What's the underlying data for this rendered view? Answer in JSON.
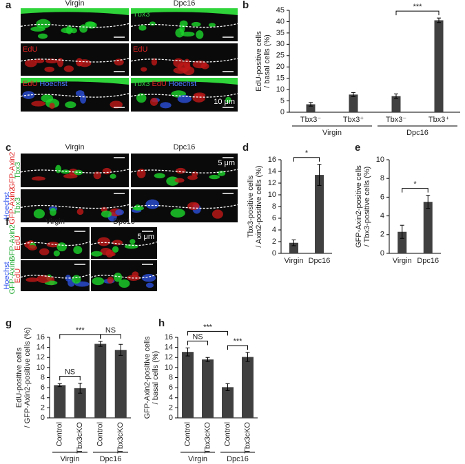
{
  "figure": [
    {
      "letter": "a",
      "columns": [
        "Virgin",
        "Dpc16"
      ],
      "cell_labels": [
        [
          [],
          [
            {
              "text": "Tbx3",
              "color": "#33cc44"
            }
          ]
        ],
        [
          [
            {
              "text": "EdU",
              "color": "#e02424"
            }
          ],
          [
            {
              "text": "EdU",
              "color": "#e02424"
            }
          ]
        ],
        [
          [
            {
              "text": "EdU",
              "color": "#e02424"
            },
            {
              "text": "Hoechst",
              "color": "#4a78ff"
            }
          ],
          [
            {
              "text": "Tbx3",
              "color": "#33cc44"
            },
            {
              "text": "EdU",
              "color": "#e02424"
            },
            {
              "text": "Hoechst",
              "color": "#4a78ff"
            }
          ]
        ]
      ],
      "scale": "10 μm"
    },
    {
      "letter": "c",
      "columns": [
        "Virgin",
        "Dpc16"
      ],
      "row_labels": [
        [
          {
            "text": "GFP-Axin2",
            "color": "#e02424"
          },
          {
            "text": "Tbx3",
            "color": "#22aa33"
          }
        ],
        [
          {
            "text": "Hoechst",
            "color": "#3355ee"
          },
          {
            "text": "GFP-Axin2",
            "color": "#e02424"
          },
          {
            "text": "Tbx3",
            "color": "#22aa33"
          }
        ]
      ],
      "scale": "5 μm"
    },
    {
      "letter": "f",
      "columns": [
        "Virgin",
        "Dpc16"
      ],
      "row_labels": [
        [
          {
            "text": "GFP-Axin2",
            "color": "#22aa33"
          },
          {
            "text": "EdU",
            "color": "#e02424"
          }
        ],
        [
          {
            "text": "Hoechst",
            "color": "#3355ee"
          },
          {
            "text": "GFP-Axin2",
            "color": "#22aa33"
          },
          {
            "text": "EdU",
            "color": "#e02424"
          }
        ]
      ],
      "scale": "5 μm"
    }
  ],
  "chart_data": [
    {
      "type": "bar",
      "letter": "b",
      "ylabel": [
        "EdU-positive cells",
        "/ basal cells (%)"
      ],
      "categories": [
        "Tbx3⁻",
        "Tbx3⁺",
        "Tbx3⁻",
        "Tbx3⁺"
      ],
      "groups": [
        "Virgin",
        "Dpc16"
      ],
      "values": [
        3.5,
        7.8,
        7.1,
        40.6
      ],
      "errors": [
        0.8,
        0.9,
        1.0,
        1.0
      ],
      "color": "#404040",
      "ylim": [
        0,
        45
      ],
      "yticks": [
        0,
        5,
        10,
        15,
        20,
        25,
        30,
        35,
        40,
        45
      ],
      "significance": [
        {
          "from": 2,
          "to": 3,
          "label": "***"
        }
      ]
    },
    {
      "type": "bar",
      "letter": "d",
      "ylabel": [
        "Tbx3-positive cells",
        "/ Axin2-positive cells (%)"
      ],
      "categories": [
        "Virgin",
        "Dpc16"
      ],
      "values": [
        1.8,
        13.4
      ],
      "errors": [
        0.5,
        1.8
      ],
      "color": "#404040",
      "ylim": [
        0,
        16
      ],
      "yticks": [
        0,
        2,
        4,
        6,
        8,
        10,
        12,
        14,
        16
      ],
      "significance": [
        {
          "from": 0,
          "to": 1,
          "label": "*"
        }
      ]
    },
    {
      "type": "bar",
      "letter": "e",
      "ylabel": [
        "GFP-Axin2-positive cells",
        "/ Tbx3-positive cells (%)"
      ],
      "categories": [
        "Virgin",
        "Dpc16"
      ],
      "values": [
        2.3,
        5.5
      ],
      "errors": [
        0.7,
        0.7
      ],
      "color": "#404040",
      "ylim": [
        0,
        10
      ],
      "yticks": [
        0,
        2,
        4,
        6,
        8,
        10
      ],
      "significance": [
        {
          "from": 0,
          "to": 1,
          "label": "*"
        }
      ]
    },
    {
      "type": "bar",
      "letter": "g",
      "ylabel": [
        "EdU-positive cells",
        "/ GFP-Axin2-positive cells (%)"
      ],
      "categories": [
        "Control",
        "Tbx3cKO",
        "Control",
        "Tbx3cKO"
      ],
      "groups": [
        "Virgin",
        "Dpc16"
      ],
      "values": [
        6.5,
        5.9,
        14.7,
        13.5
      ],
      "errors": [
        0.3,
        1.0,
        0.5,
        1.1
      ],
      "color": "#404040",
      "ylim": [
        0,
        16
      ],
      "yticks": [
        0,
        2,
        4,
        6,
        8,
        10,
        12,
        14,
        16
      ],
      "significance": [
        {
          "from": 0,
          "to": 1,
          "label": "NS"
        },
        {
          "from": 0,
          "to": 2,
          "label": "***"
        },
        {
          "from": 2,
          "to": 3,
          "label": "NS"
        }
      ]
    },
    {
      "type": "bar",
      "letter": "h",
      "ylabel": [
        "GFP-Axin2-positive cells",
        "/ basal cells (%)"
      ],
      "categories": [
        "Control",
        "Tbx3cKO",
        "Control",
        "Tbx3cKO"
      ],
      "groups": [
        "Virgin",
        "Dpc16"
      ],
      "values": [
        13.1,
        11.6,
        6.1,
        12.1
      ],
      "errors": [
        0.8,
        0.4,
        0.7,
        0.9
      ],
      "color": "#404040",
      "ylim": [
        0,
        16
      ],
      "yticks": [
        0,
        2,
        4,
        6,
        8,
        10,
        12,
        14,
        16
      ],
      "significance": [
        {
          "from": 0,
          "to": 1,
          "label": "NS"
        },
        {
          "from": 0,
          "to": 2,
          "label": "***"
        },
        {
          "from": 2,
          "to": 3,
          "label": "***"
        }
      ]
    }
  ]
}
